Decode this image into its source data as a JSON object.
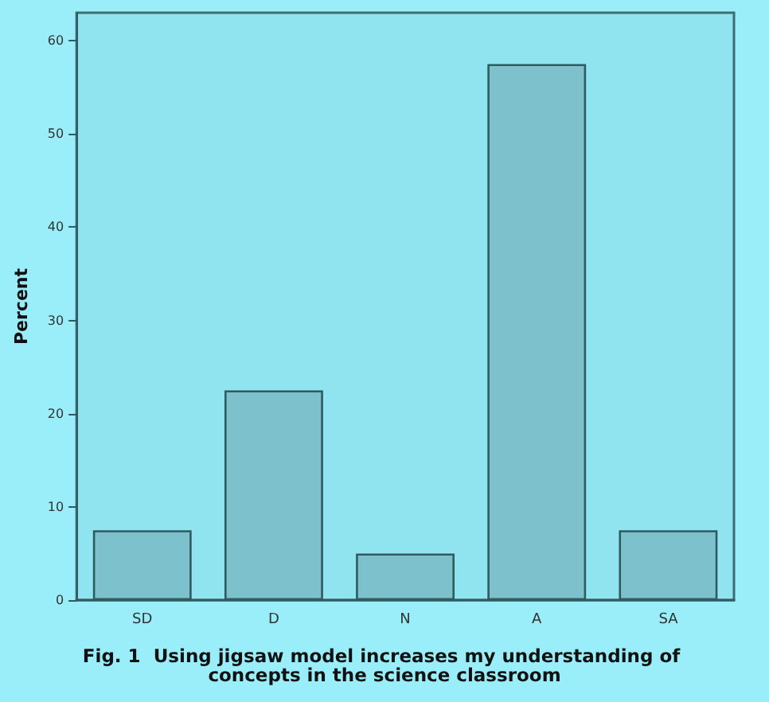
{
  "chart_data": {
    "type": "bar",
    "title": "Fig. 1  Using jigsaw model increases my understanding of concepts in the science classroom",
    "ylabel": "Percent",
    "categories": [
      "SD",
      "D",
      "N",
      "A",
      "SA"
    ],
    "values": [
      7.5,
      22.5,
      5,
      57.5,
      7.5
    ],
    "color": "#7cc1cb",
    "ylim": [
      0,
      63
    ],
    "yticks": [
      0,
      10,
      20,
      30,
      40,
      50,
      60
    ],
    "grid": false
  }
}
